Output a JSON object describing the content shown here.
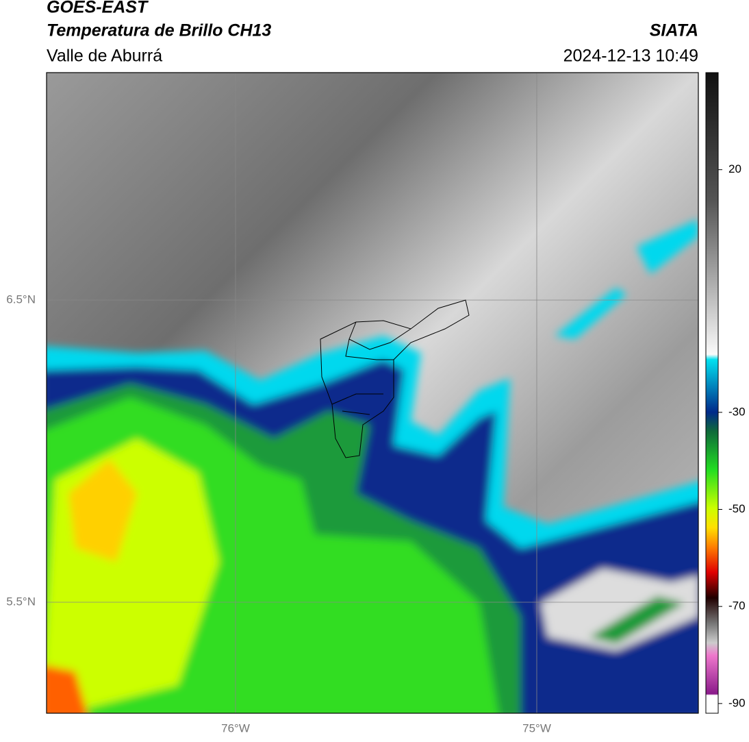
{
  "header": {
    "title": "GOES-EAST",
    "subtitle": "Temperatura de Brillo CH13",
    "region": "Valle de Aburrá",
    "source": "SIATA",
    "timestamp": "2024-12-13 10:49"
  },
  "map": {
    "lat_labels": [
      "6.5°N",
      "5.5°N"
    ],
    "lon_labels": [
      "76°W",
      "75°W"
    ]
  },
  "colorbar": {
    "range": [
      -92,
      40
    ],
    "ticks": [
      20,
      -30,
      -50,
      -70,
      -90
    ]
  }
}
